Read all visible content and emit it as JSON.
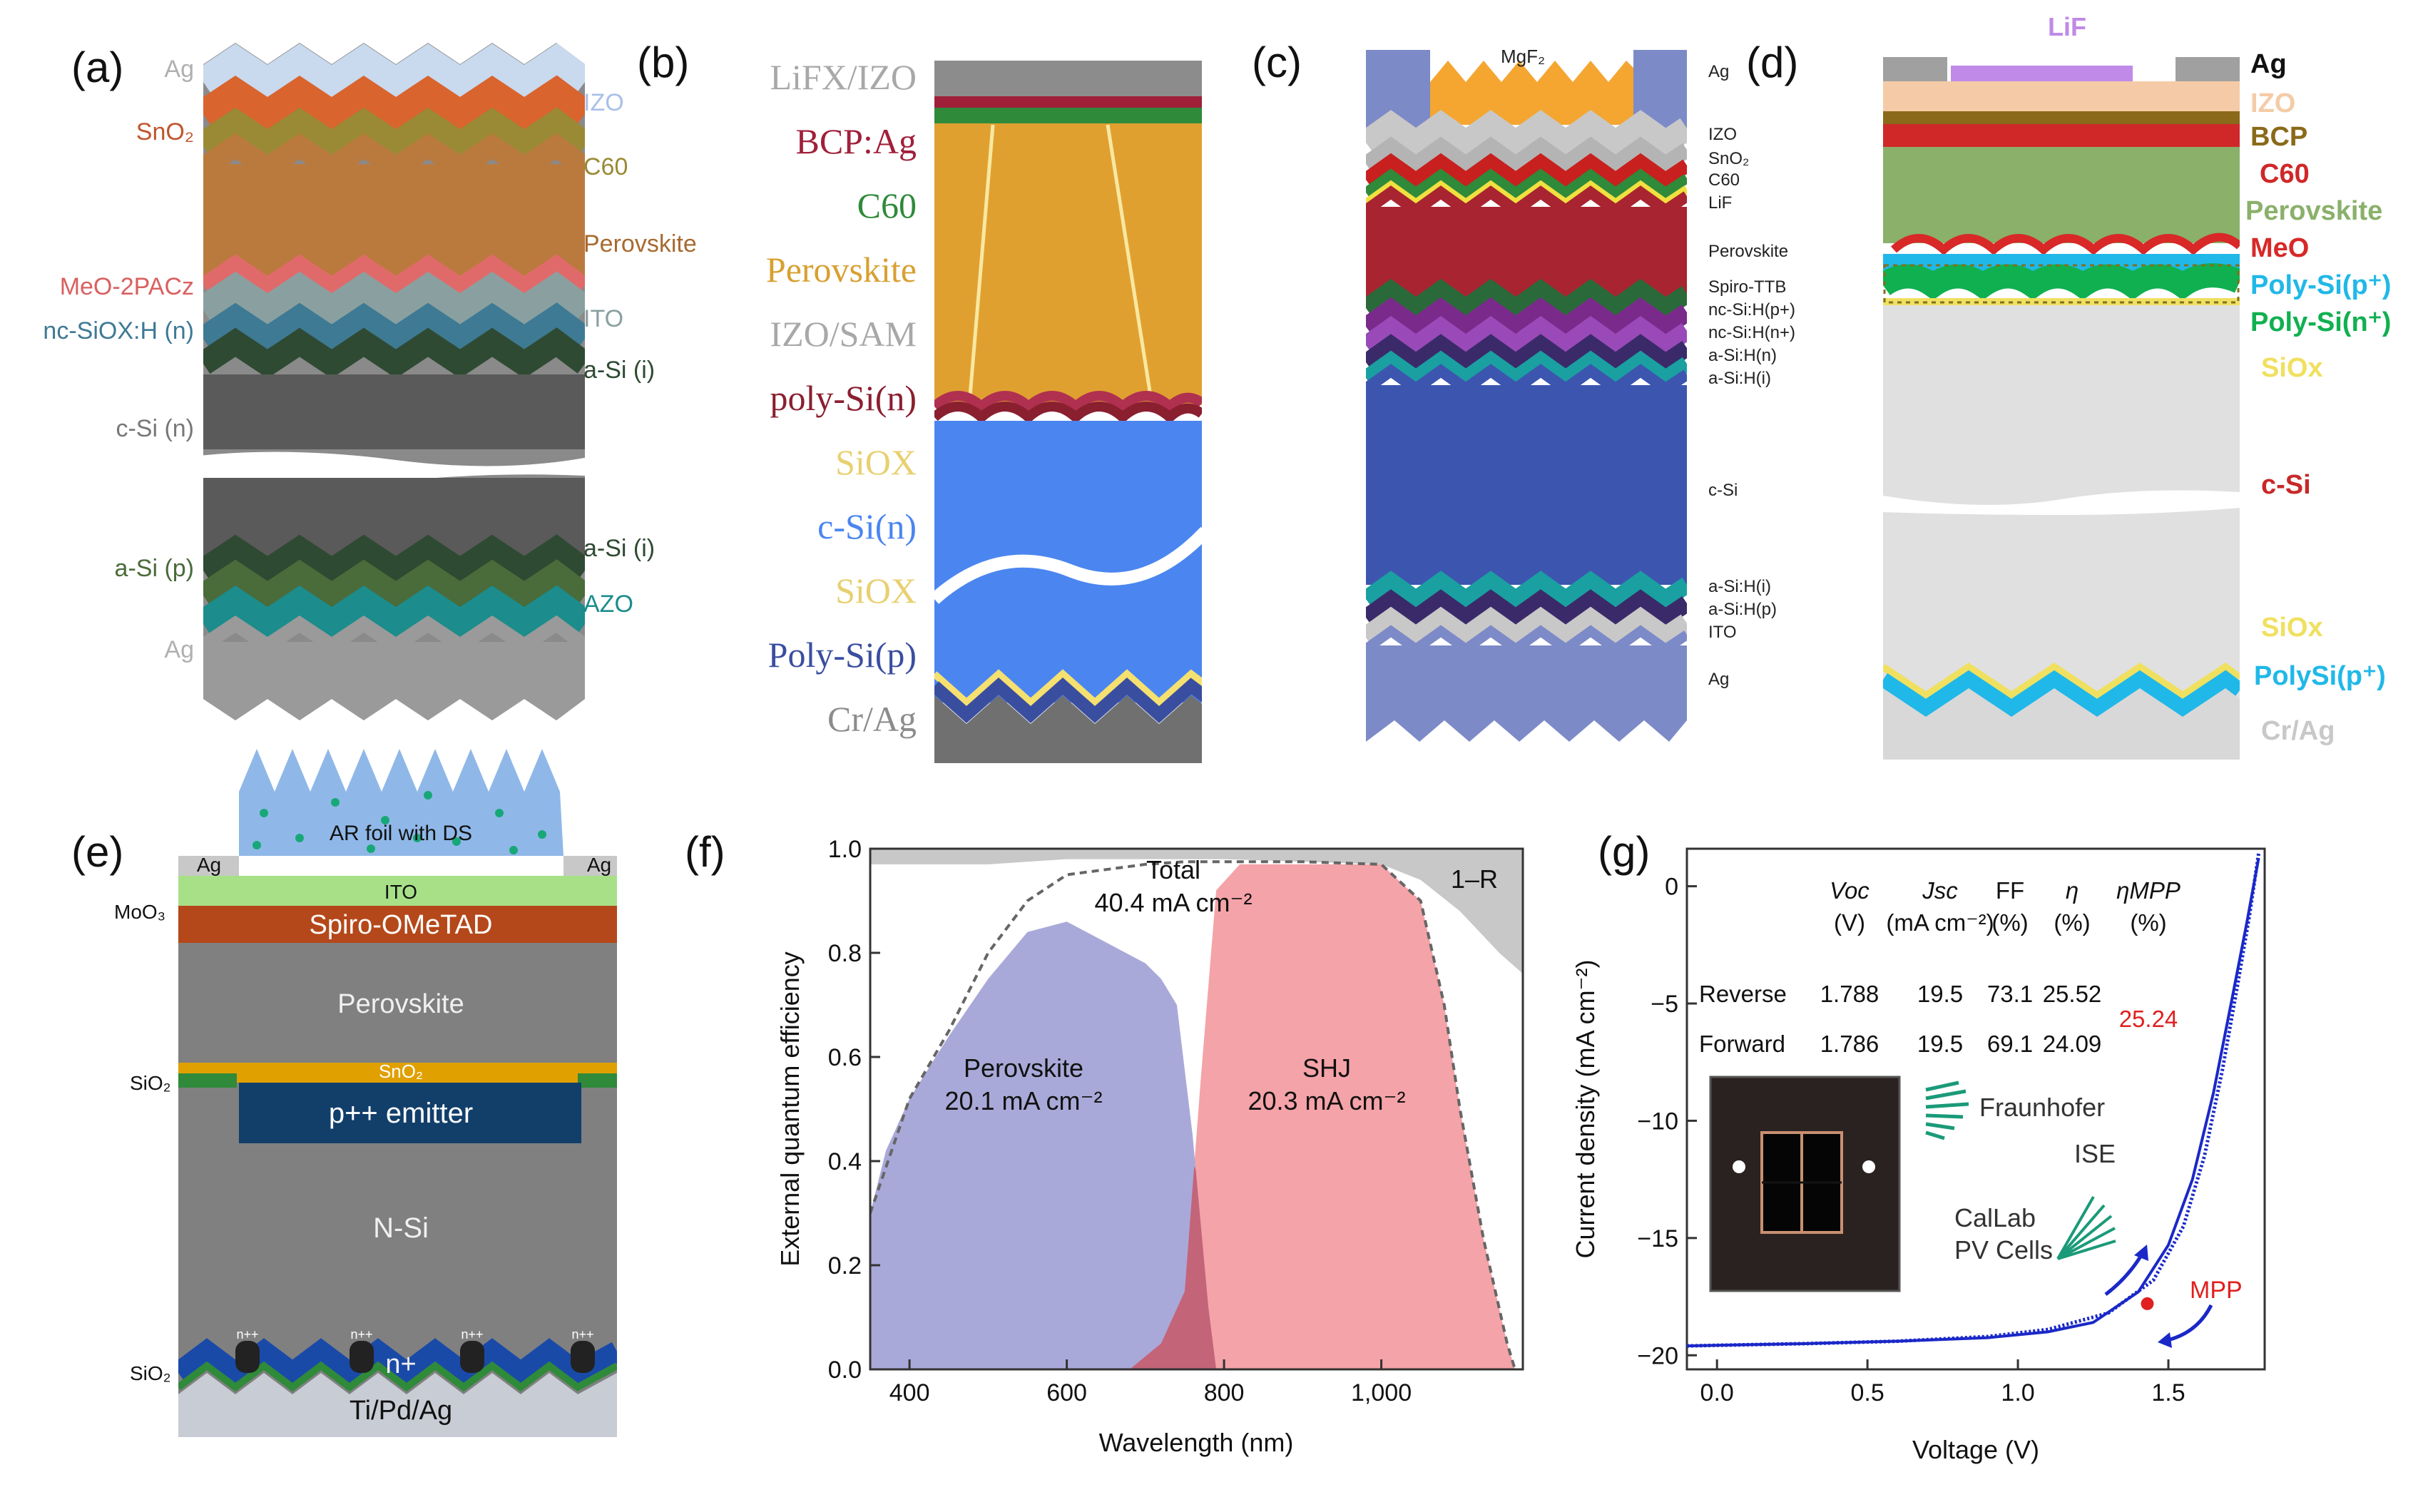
{
  "panels": {
    "a": {
      "tag": "(a)",
      "left_labels": [
        "Ag",
        "SnO₂",
        "MeO-2PACz",
        "nc-SiOX:H (n)",
        "c-Si (n)",
        "a-Si (p)",
        "Ag"
      ],
      "right_labels": [
        "IZO",
        "C60",
        "Perovskite",
        "ITO",
        "a-Si (i)",
        "a-Si (i)",
        "AZO"
      ]
    },
    "b": {
      "tag": "(b)",
      "labels": [
        "LiFX/IZO",
        "BCP:Ag",
        "C60",
        "Perovskite",
        "IZO/SAM",
        "poly-Si(n)",
        "SiOX",
        "c-Si(n)",
        "SiOX",
        "Poly-Si(p)",
        "Cr/Ag"
      ]
    },
    "c": {
      "tag": "(c)",
      "top_label": "MgF₂",
      "labels": [
        "Ag",
        "IZO",
        "SnO₂",
        "C60",
        "LiF",
        "Perovskite",
        "Spiro-TTB",
        "nc-Si:H(p+)",
        "nc-Si:H(n+)",
        "a-Si:H(n)",
        "a-Si:H(i)",
        "c-Si",
        "a-Si:H(i)",
        "a-Si:H(p)",
        "ITO",
        "Ag"
      ]
    },
    "d": {
      "tag": "(d)",
      "top_label": "LiF",
      "labels": [
        "Ag",
        "IZO",
        "BCP",
        "C60",
        "Perovskite",
        "MeO",
        "Poly-Si(p⁺)",
        "Poly-Si(n⁺)",
        "SiOx",
        "c-Si",
        "SiOx",
        "PolySi(p⁺)",
        "Cr/Ag"
      ]
    },
    "e": {
      "tag": "(e)",
      "labels": {
        "ar_foil": "AR foil with DS",
        "ag_left": "Ag",
        "ag_right": "Ag",
        "ito": "ITO",
        "moo3": "MoO₃",
        "spiro": "Spiro-OMeTAD",
        "perovskite": "Perovskite",
        "sio2_top": "SiO₂",
        "sno2": "SnO₂",
        "emitter": "p++ emitter",
        "nsi": "N-Si",
        "npp": [
          "n++",
          "n++",
          "n++",
          "n++"
        ],
        "sio2_bottom": "SiO₂",
        "nplus": "n+",
        "metal": "Ti/Pd/Ag"
      }
    },
    "f": {
      "tag": "(f)",
      "total_label": "Total",
      "total_value": "40.4 mA cm⁻²",
      "reflection_label": "1–R",
      "perovskite_label": "Perovskite",
      "perovskite_value": "20.1 mA cm⁻²",
      "shj_label": "SHJ",
      "shj_value": "20.3 mA cm⁻²"
    },
    "g": {
      "tag": "(g)",
      "table": {
        "headers": [
          "Voc",
          "Jsc",
          "FF",
          "η",
          "ηMPP"
        ],
        "units": [
          "(V)",
          "(mA cm⁻²)",
          "(%)",
          "(%)",
          "(%)"
        ],
        "rows": [
          {
            "label": "Reverse",
            "values": [
              "1.788",
              "19.5",
              "73.1",
              "25.52"
            ]
          },
          {
            "label": "Forward",
            "values": [
              "1.786",
              "19.5",
              "69.1",
              "24.09"
            ]
          }
        ],
        "mpp_value": "25.24"
      },
      "logos": {
        "fraunhofer": "Fraunhofer",
        "ise": "ISE",
        "callab": "CalLab",
        "pvcells": "PV Cells"
      },
      "mpp_label": "MPP"
    }
  },
  "chart_data": [
    {
      "panel": "f",
      "type": "area",
      "xlabel": "Wavelength (nm)",
      "ylabel": "External quantum efficiency",
      "xlim": [
        350,
        1180
      ],
      "ylim": [
        0,
        1.0
      ],
      "xticks": [
        400,
        600,
        800,
        1000
      ],
      "xtick_labels": [
        "400",
        "600",
        "800",
        "1,000"
      ],
      "yticks": [
        0,
        0.2,
        0.4,
        0.6,
        0.8,
        1.0
      ],
      "ytick_labels": [
        "0.0",
        "0.2",
        "0.4",
        "0.6",
        "0.8",
        "1.0"
      ],
      "series": [
        {
          "name": "Perovskite",
          "color": "#a9a9d9",
          "x": [
            350,
            370,
            400,
            450,
            500,
            550,
            600,
            650,
            700,
            720,
            740,
            760,
            780,
            790
          ],
          "y": [
            0.3,
            0.42,
            0.52,
            0.64,
            0.75,
            0.84,
            0.86,
            0.82,
            0.78,
            0.75,
            0.7,
            0.45,
            0.12,
            0.0
          ]
        },
        {
          "name": "SHJ",
          "color": "#f4a3a8",
          "x": [
            680,
            720,
            750,
            770,
            790,
            820,
            900,
            1000,
            1050,
            1080,
            1100,
            1130,
            1160,
            1170
          ],
          "y": [
            0.0,
            0.05,
            0.15,
            0.55,
            0.92,
            0.97,
            0.97,
            0.97,
            0.9,
            0.7,
            0.5,
            0.25,
            0.05,
            0.0
          ]
        },
        {
          "name": "Total",
          "style": "dashed",
          "x": [
            350,
            400,
            450,
            500,
            550,
            600,
            650,
            700,
            750,
            790,
            820,
            900,
            1000,
            1050,
            1080,
            1100,
            1130,
            1160,
            1170
          ],
          "y": [
            0.3,
            0.52,
            0.65,
            0.8,
            0.9,
            0.95,
            0.96,
            0.97,
            0.975,
            0.975,
            0.975,
            0.975,
            0.97,
            0.9,
            0.7,
            0.5,
            0.25,
            0.05,
            0.0
          ]
        },
        {
          "name": "1–R",
          "color": "#c8c8c8",
          "x": [
            350,
            500,
            600,
            800,
            1000,
            1050,
            1100,
            1150,
            1180
          ],
          "y": [
            0.97,
            0.97,
            0.98,
            0.98,
            0.97,
            0.94,
            0.88,
            0.8,
            0.76
          ]
        }
      ]
    },
    {
      "panel": "g",
      "type": "line",
      "xlabel": "Voltage (V)",
      "ylabel": "Current density (mA cm⁻²)",
      "xlim": [
        -0.1,
        1.82
      ],
      "ylim": [
        -20.6,
        1.6
      ],
      "xticks": [
        0.0,
        0.5,
        1.0,
        1.5
      ],
      "xtick_labels": [
        "0.0",
        "0.5",
        "1.0",
        "1.5"
      ],
      "yticks": [
        0,
        -5,
        -10,
        -15,
        -20
      ],
      "ytick_labels": [
        "0",
        "−5",
        "−10",
        "−15",
        "−20"
      ],
      "series": [
        {
          "name": "Reverse",
          "x": [
            -0.1,
            0.3,
            0.6,
            0.9,
            1.1,
            1.3,
            1.45,
            1.55,
            1.62,
            1.68,
            1.73,
            1.77,
            1.8
          ],
          "y": [
            -19.6,
            -19.5,
            -19.4,
            -19.2,
            -18.9,
            -18.2,
            -16.8,
            -14.5,
            -11.5,
            -7.8,
            -4.2,
            -1.2,
            1.4
          ]
        },
        {
          "name": "Forward",
          "x": [
            -0.1,
            0.3,
            0.6,
            0.9,
            1.1,
            1.25,
            1.4,
            1.5,
            1.58,
            1.65,
            1.71,
            1.76,
            1.8
          ],
          "y": [
            -19.6,
            -19.5,
            -19.4,
            -19.25,
            -19.0,
            -18.6,
            -17.3,
            -15.3,
            -12.5,
            -8.8,
            -4.9,
            -1.6,
            1.2
          ]
        }
      ],
      "mpp_point": {
        "x": 1.43,
        "y": -17.8
      }
    }
  ]
}
